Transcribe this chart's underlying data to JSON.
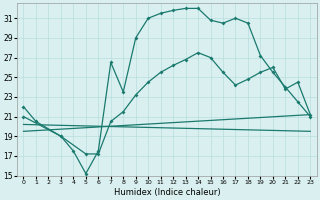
{
  "xlabel": "Humidex (Indice chaleur)",
  "ylabel": "",
  "bg_color": "#daf0f0",
  "line_color": "#1a7a6e",
  "xlim": [
    -0.5,
    23.5
  ],
  "ylim": [
    15,
    32.5
  ],
  "yticks": [
    15,
    17,
    19,
    21,
    23,
    25,
    27,
    29,
    31
  ],
  "xticks": [
    0,
    1,
    2,
    3,
    4,
    5,
    6,
    7,
    8,
    9,
    10,
    11,
    12,
    13,
    14,
    15,
    16,
    17,
    18,
    19,
    20,
    21,
    22,
    23
  ],
  "lines": [
    {
      "x": [
        0,
        1,
        3,
        4,
        5,
        6,
        7,
        8,
        9,
        10,
        11,
        12,
        13,
        14,
        15,
        16,
        17,
        18,
        19,
        20,
        21,
        22,
        23
      ],
      "y": [
        22,
        20.5,
        19,
        17.5,
        15.2,
        17.5,
        26.5,
        23.5,
        29.0,
        31.0,
        31.5,
        31.8,
        32.0,
        32.0,
        30.8,
        30.5,
        31.0,
        30.5,
        27.2,
        25.5,
        24.0,
        22.5,
        21.0
      ]
    },
    {
      "x": [
        0,
        3,
        5,
        6,
        7,
        8,
        9,
        10,
        11,
        12,
        13,
        14,
        15,
        16,
        17,
        18,
        19,
        20,
        21,
        22,
        23
      ],
      "y": [
        21,
        19,
        17.2,
        17.2,
        20.5,
        21.5,
        23.2,
        24.5,
        25.5,
        26.2,
        26.8,
        27.5,
        27.0,
        25.5,
        24.2,
        24.8,
        25.5,
        26.0,
        23.8,
        24.5,
        21.2
      ]
    },
    {
      "x": [
        0,
        23
      ],
      "y": [
        19.5,
        21.2
      ]
    },
    {
      "x": [
        0,
        23
      ],
      "y": [
        20.2,
        19.5
      ]
    }
  ]
}
